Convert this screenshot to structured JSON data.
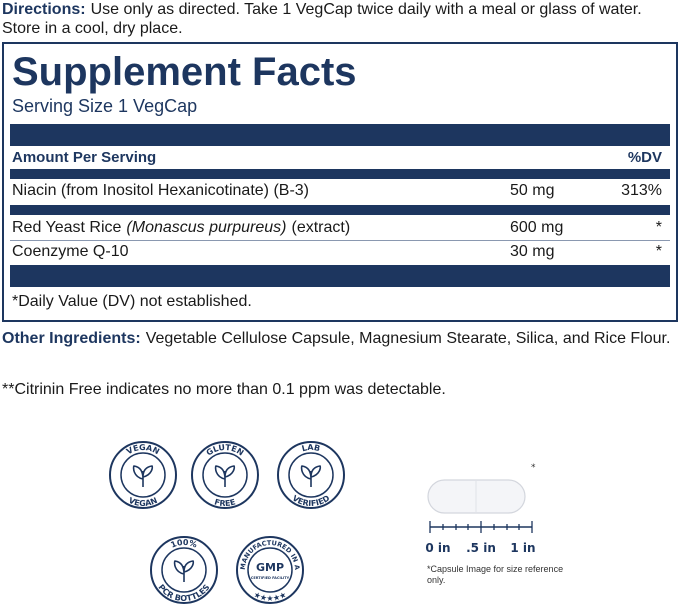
{
  "directions": {
    "label": "Directions:",
    "text": "Use only as directed. Take 1 VegCap twice daily with a meal or glass of water. Store in a cool, dry place."
  },
  "facts": {
    "title": "Supplement Facts",
    "serving_size": "Serving Size 1 VegCap",
    "header": {
      "amount": "Amount Per Serving",
      "dv": "%DV"
    },
    "rows": [
      {
        "name": "Niacin (from Inositol Hexanicotinate) (B-3)",
        "amount": "50 mg",
        "dv": "313%"
      },
      {
        "name": "Red Yeast Rice",
        "latin": "(Monascus purpureus)",
        "suffix": "(extract)",
        "amount": "600 mg",
        "dv": "*"
      },
      {
        "name": "Coenzyme Q-10",
        "amount": "30 mg",
        "dv": "*"
      }
    ],
    "footnote": "*Daily Value (DV) not established."
  },
  "other_ingredients": {
    "label": "Other Ingredients:",
    "text": "Vegetable Cellulose Capsule, Magnesium Stearate, Silica, and Rice Flour."
  },
  "citrinin_note": "**Citrinin Free indicates no more than 0.1 ppm was detectable.",
  "badges": [
    {
      "top": "VEGAN",
      "bottom": "VEGAN"
    },
    {
      "top": "GLUTEN",
      "bottom": "FREE"
    },
    {
      "top": "LAB",
      "bottom": "VERIFIED"
    },
    {
      "top": "100%",
      "bottom": "PCR BOTTLES"
    },
    {
      "top": "MANUFACTURED IN A",
      "center": "GMP",
      "center_sub": "CERTIFIED FACILITY",
      "bottom": "★★★★★"
    }
  ],
  "capsule": {
    "mark": "*",
    "scale": [
      "0 in",
      ".5 in",
      "1 in"
    ],
    "note": "*Capsule Image for size reference only."
  }
}
